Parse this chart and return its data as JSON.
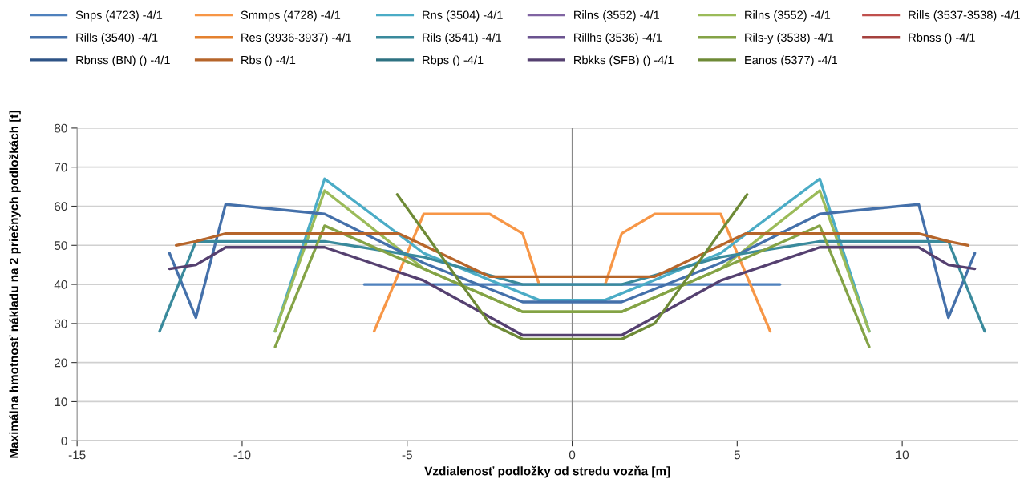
{
  "chart_data": {
    "type": "line",
    "xlabel": "Vzdialenosť podložky od stredu vozňa [m]",
    "ylabel": "Maximálna hmotnosť nákladu na 2 priečnych podložkách [t]",
    "xlim": [
      -15,
      13.5
    ],
    "xticks": [
      -15,
      -10,
      -5,
      0,
      5,
      10
    ],
    "ylim": [
      0,
      80
    ],
    "yticks": [
      0,
      10,
      20,
      30,
      40,
      50,
      60,
      70,
      80
    ],
    "grid": "y",
    "legend": "top",
    "marker": "none",
    "line_style": "solid",
    "series": [
      {
        "name": "Snps (4723) -4/1",
        "color": "#4f81bd",
        "x": [
          -6.3,
          6.3
        ],
        "values": [
          40,
          40
        ]
      },
      {
        "name": "Smmps (4728) -4/1",
        "color": "#f79646",
        "x": [
          -6,
          -4.5,
          -2.5,
          -1.5,
          -1,
          0,
          1,
          1.5,
          2.5,
          4.5,
          6
        ],
        "values": [
          28,
          58,
          58,
          53,
          40,
          null,
          40,
          53,
          58,
          58,
          28
        ]
      },
      {
        "name": "Rns (3504) -4/1",
        "color": "#4bacc6",
        "x": [
          -9,
          -7.5,
          -4.5,
          -1,
          1,
          4.5,
          7.5,
          9
        ],
        "values": [
          28,
          67,
          48,
          36,
          36,
          48,
          67,
          28
        ]
      },
      {
        "name": "Rilns (3552) -4/1",
        "color": "#8064a2"
      },
      {
        "name": "Rilns (3552) -4/1",
        "color": "#9bbb59",
        "x": [
          -9,
          -7.5,
          -4.5,
          -1.5,
          1.5,
          4.5,
          7.5,
          9
        ],
        "values": [
          28,
          64,
          44,
          33,
          33,
          44,
          64,
          28
        ]
      },
      {
        "name": "Rills (3537-3538) -4/1",
        "color": "#c0504d"
      },
      {
        "name": "Rills (3540) -4/1",
        "color": "#4470aa",
        "x": [
          -12.2,
          -11.4,
          -10.5,
          -7.5,
          -4.5,
          -1.5,
          1.5,
          4.5,
          7.5,
          10.5,
          11.4,
          12.2
        ],
        "values": [
          48,
          31.5,
          60.5,
          58,
          45.5,
          35.5,
          35.5,
          45.5,
          58,
          60.5,
          31.5,
          48
        ]
      },
      {
        "name": "Res (3936-3937) -4/1",
        "color": "#e4812f"
      },
      {
        "name": "Rils (3541) -4/1",
        "color": "#3a8a9c",
        "x": [
          -12.5,
          -11.4,
          -7.5,
          -4.5,
          -1.5,
          1.5,
          4.5,
          7.5,
          11.4,
          12.5
        ],
        "values": [
          28,
          51,
          51,
          47,
          40,
          40,
          47,
          51,
          51,
          28
        ]
      },
      {
        "name": "Rillhs (3536) -4/1",
        "color": "#6b5390"
      },
      {
        "name": "Rils-y (3538) -4/1",
        "color": "#84a346",
        "x": [
          -9,
          -7.5,
          -4.5,
          -1.5,
          1.5,
          4.5,
          7.5,
          9
        ],
        "values": [
          24,
          55,
          44,
          33,
          33,
          44,
          55,
          24
        ]
      },
      {
        "name": "Rbnss () -4/1",
        "color": "#a5413e"
      },
      {
        "name": "Rbnss (BN) () -4/1",
        "color": "#2e5386"
      },
      {
        "name": "Rbs () -4/1",
        "color": "#b6652a",
        "x": [
          -12,
          -11.4,
          -10.5,
          -5.25,
          -2.5,
          2.5,
          5.25,
          10.5,
          11.4,
          12
        ],
        "values": [
          50,
          51,
          53,
          53,
          42,
          42,
          53,
          53,
          51,
          50
        ]
      },
      {
        "name": "Rbps () -4/1",
        "color": "#2e7282"
      },
      {
        "name": "Rbkks (SFB) () -4/1",
        "color": "#554070",
        "x": [
          -12.2,
          -11.4,
          -10.5,
          -7.5,
          -4.5,
          -1.5,
          1.5,
          4.5,
          7.5,
          10.5,
          11.4,
          12.2
        ],
        "values": [
          44,
          45,
          49.5,
          49.5,
          41,
          27,
          27,
          41,
          49.5,
          49.5,
          45,
          44
        ]
      },
      {
        "name": "Eanos (5377) -4/1",
        "color": "#6e8a36",
        "x": [
          -5.3,
          -2.5,
          -1.5,
          1.5,
          2.5,
          5.3
        ],
        "values": [
          63,
          30,
          26,
          26,
          30,
          63
        ]
      }
    ]
  }
}
